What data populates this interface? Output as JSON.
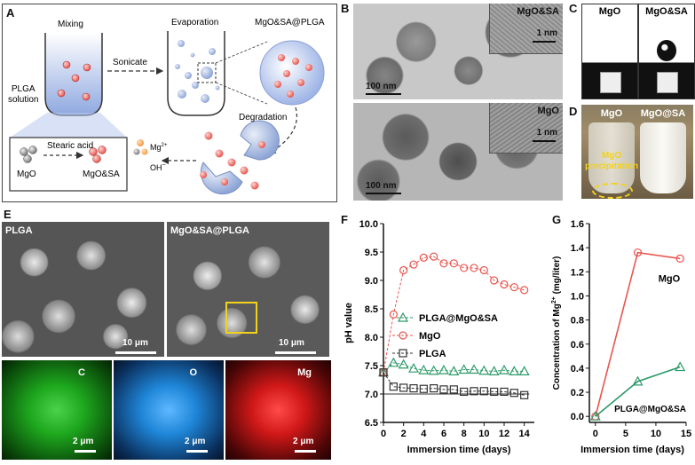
{
  "panels": {
    "A": {
      "label": "A",
      "mixing": "Mixing",
      "plga_solution": "PLGA\nsolution",
      "sonicate": "Sonicate",
      "evaporation": "Evaporation",
      "product": "MgO&SA@PLGA",
      "degradation": "Degradation",
      "stearic_acid": "Stearic acid",
      "mgo": "MgO",
      "mgo_sa": "MgO&SA",
      "mg_ion": "Mg",
      "mg_charge": "2+",
      "oh_ion": "OH",
      "oh_charge": "−"
    },
    "B": {
      "label": "B",
      "top_label": "MgO&SA",
      "bottom_label": "MgO",
      "inset_scale": "1 nm",
      "main_scale": "100 nm"
    },
    "C": {
      "label": "C",
      "left": "MgO",
      "right": "MgO&SA"
    },
    "D": {
      "label": "D",
      "left": "MgO",
      "right": "MgO@SA",
      "note": "MgO\nprecipitation"
    },
    "E": {
      "label": "E",
      "sem_left": "PLGA",
      "sem_right": "MgO&SA@PLGA",
      "sem_scale": "10 μm",
      "map_c": "C",
      "map_o": "O",
      "map_mg": "Mg",
      "map_scale": "2 μm"
    },
    "F": {
      "label": "F"
    },
    "G": {
      "label": "G"
    }
  },
  "colors": {
    "red": "#e8554e",
    "green": "#2e9a6a",
    "black": "#333333",
    "yellow": "#f2d21b"
  },
  "chart_data": [
    {
      "panel": "F",
      "type": "line",
      "xlabel": "Immersion time (days)",
      "ylabel": "pH value",
      "xlim": [
        0,
        15
      ],
      "ylim": [
        6.5,
        10.0
      ],
      "xticks": [
        0,
        2,
        4,
        6,
        8,
        10,
        12,
        14
      ],
      "yticks": [
        6.5,
        7.0,
        7.5,
        8.0,
        8.5,
        9.0,
        9.5,
        10.0
      ],
      "legend_position": "left-middle",
      "baseline": 7.0,
      "series": [
        {
          "name": "PLGA@MgO&SA",
          "color": "#2e9a6a",
          "marker": "triangle",
          "line": "dashed",
          "x": [
            0,
            1,
            2,
            3,
            4,
            5,
            6,
            7,
            8,
            9,
            10,
            11,
            12,
            13,
            14
          ],
          "y": [
            7.38,
            7.55,
            7.52,
            7.45,
            7.42,
            7.41,
            7.42,
            7.4,
            7.43,
            7.43,
            7.41,
            7.4,
            7.42,
            7.4,
            7.4
          ]
        },
        {
          "name": "MgO",
          "color": "#e8554e",
          "marker": "circle",
          "line": "dashed",
          "x": [
            0,
            1,
            2,
            3,
            4,
            5,
            6,
            7,
            8,
            9,
            10,
            11,
            12,
            13,
            14
          ],
          "y": [
            7.38,
            8.4,
            9.18,
            9.28,
            9.4,
            9.42,
            9.3,
            9.3,
            9.22,
            9.22,
            9.18,
            9.0,
            8.93,
            8.88,
            8.83
          ]
        },
        {
          "name": "PLGA",
          "color": "#333333",
          "marker": "square",
          "line": "dashed",
          "x": [
            0,
            1,
            2,
            3,
            4,
            5,
            6,
            7,
            8,
            9,
            10,
            11,
            12,
            13,
            14
          ],
          "y": [
            7.38,
            7.13,
            7.11,
            7.1,
            7.09,
            7.1,
            7.08,
            7.08,
            7.04,
            7.05,
            7.05,
            7.04,
            7.04,
            7.02,
            6.98
          ]
        }
      ]
    },
    {
      "panel": "G",
      "type": "line",
      "xlabel": "Immersion time (days)",
      "ylabel": "Concentration of Mg",
      "ylabel_sup": "2+",
      "ylabel_unit": " (mg/liter)",
      "xlim": [
        -1,
        15
      ],
      "ylim": [
        -0.05,
        1.6
      ],
      "xticks": [
        0,
        5,
        10,
        15
      ],
      "yticks": [
        0.0,
        0.2,
        0.4,
        0.6,
        0.8,
        1.0,
        1.2,
        1.4,
        1.6
      ],
      "series": [
        {
          "name": "MgO",
          "color": "#e8554e",
          "marker": "circle",
          "x": [
            0,
            7,
            14
          ],
          "y": [
            0.0,
            1.36,
            1.31
          ]
        },
        {
          "name": "PLGA@MgO&SA",
          "color": "#2e9a6a",
          "marker": "triangle",
          "x": [
            0,
            7,
            14
          ],
          "y": [
            0.0,
            0.29,
            0.41
          ]
        }
      ]
    }
  ]
}
